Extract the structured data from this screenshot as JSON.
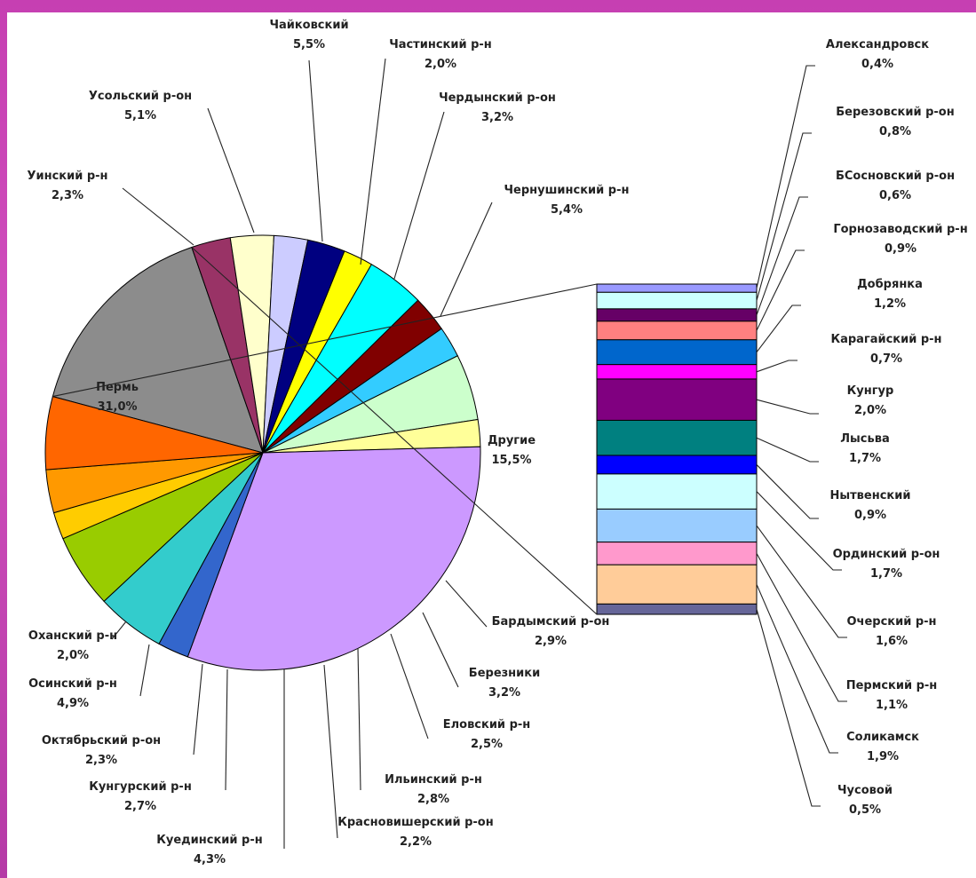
{
  "chart_data": [
    {
      "type": "pie",
      "slices": [
        {
          "name": "Другие",
          "label": "15,5%",
          "value": 15.5,
          "color": "#8c8c8c"
        },
        {
          "name": "Бардымский р-он",
          "label": "2,9%",
          "value": 2.9,
          "color": "#993366"
        },
        {
          "name": "Березники",
          "label": "3,2%",
          "value": 3.2,
          "color": "#ffffcc"
        },
        {
          "name": "Еловский р-н",
          "label": "2,5%",
          "value": 2.5,
          "color": "#ccccff"
        },
        {
          "name": "Ильинский р-н",
          "label": "2,8%",
          "value": 2.8,
          "color": "#000080"
        },
        {
          "name": "Красновишерский р-он",
          "label": "2,2%",
          "value": 2.2,
          "color": "#ffff00"
        },
        {
          "name": "Куединский р-н",
          "label": "4,3%",
          "value": 4.3,
          "color": "#00ffff"
        },
        {
          "name": "Кунгурский р-н",
          "label": "2,7%",
          "value": 2.7,
          "color": "#800000"
        },
        {
          "name": "Октябрьский р-он",
          "label": "2,3%",
          "value": 2.3,
          "color": "#33ccff"
        },
        {
          "name": "Осинский р-н",
          "label": "4,9%",
          "value": 4.9,
          "color": "#ccffcc"
        },
        {
          "name": "Оханский р-н",
          "label": "2,0%",
          "value": 2.0,
          "color": "#ffff99"
        },
        {
          "name": "Пермь",
          "label": "31,0%",
          "value": 31.0,
          "color": "#cc99ff"
        },
        {
          "name": "Уинский р-н",
          "label": "2,3%",
          "value": 2.3,
          "color": "#3366cc"
        },
        {
          "name": "Усольский р-он",
          "label": "5,1%",
          "value": 5.1,
          "color": "#33cccc"
        },
        {
          "name": "Чайковский",
          "label": "5,5%",
          "value": 5.5,
          "color": "#99cc00"
        },
        {
          "name": "Частинский р-н",
          "label": "2,0%",
          "value": 2.0,
          "color": "#ffcc00"
        },
        {
          "name": "Чердынский р-он",
          "label": "3,2%",
          "value": 3.2,
          "color": "#ff9900"
        },
        {
          "name": "Чернушинский р-н",
          "label": "5,4%",
          "value": 5.4,
          "color": "#ff6600"
        }
      ]
    },
    {
      "type": "bar",
      "stacked": true,
      "segments": [
        {
          "name": "Александровск",
          "label": "0,4%",
          "value": 0.4,
          "color": "#9999ff"
        },
        {
          "name": "Березовский р-он",
          "label": "0,8%",
          "value": 0.8,
          "color": "#ccffff"
        },
        {
          "name": "БСосновский р-он",
          "label": "0,6%",
          "value": 0.6,
          "color": "#660066"
        },
        {
          "name": "Горнозаводский р-н",
          "label": "0,9%",
          "value": 0.9,
          "color": "#ff8080"
        },
        {
          "name": "Добрянка",
          "label": "1,2%",
          "value": 1.2,
          "color": "#0066cc"
        },
        {
          "name": "Карагайский р-н",
          "label": "0,7%",
          "value": 0.7,
          "color": "#ff00ff"
        },
        {
          "name": "Кунгур",
          "label": "2,0%",
          "value": 2.0,
          "color": "#800080"
        },
        {
          "name": "Лысьва",
          "label": "1,7%",
          "value": 1.7,
          "color": "#008080"
        },
        {
          "name": "Нытвенский",
          "label": "0,9%",
          "value": 0.9,
          "color": "#0000ff"
        },
        {
          "name": "Ординский р-он",
          "label": "1,7%",
          "value": 1.7,
          "color": "#ccffff"
        },
        {
          "name": "Очерский р-н",
          "label": "1,6%",
          "value": 1.6,
          "color": "#99ccff"
        },
        {
          "name": "Пермский р-н",
          "label": "1,1%",
          "value": 1.1,
          "color": "#ff99cc"
        },
        {
          "name": "Соликамск",
          "label": "1,9%",
          "value": 1.9,
          "color": "#ffcc99"
        },
        {
          "name": "Чусовой",
          "label": "0,5%",
          "value": 0.5,
          "color": "#666699"
        }
      ]
    }
  ]
}
